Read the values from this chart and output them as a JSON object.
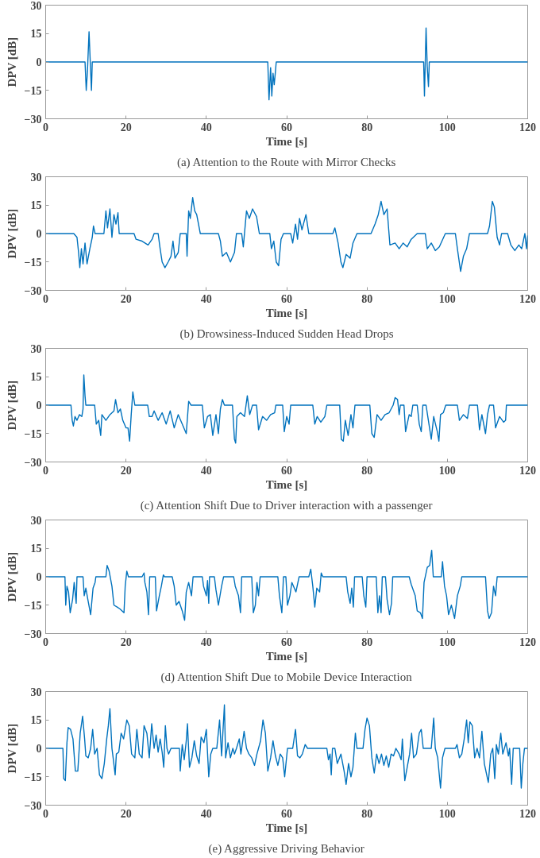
{
  "chart_data": [
    {
      "type": "line",
      "title": "(a) Attention to the Route with Mirror Checks",
      "xlabel": "Time [s]",
      "ylabel": "DPV [dB]",
      "xlim": [
        0,
        120
      ],
      "ylim": [
        -30,
        30
      ],
      "xticks": [
        0,
        20,
        40,
        60,
        80,
        100,
        120
      ],
      "yticks": [
        -30,
        -15,
        0,
        15,
        30
      ],
      "grid": false,
      "color": "#0072bd",
      "x": [
        0,
        9.8,
        10.1,
        10.4,
        10.8,
        11.1,
        11.4,
        11.6,
        55.3,
        55.6,
        56.0,
        56.3,
        56.6,
        56.9,
        57.2,
        57.4,
        94.1,
        94.3,
        94.7,
        95.0,
        95.3,
        95.5,
        120
      ],
      "values": [
        0,
        0,
        -15,
        -5,
        16,
        0,
        -15,
        0,
        0,
        -20,
        -3,
        -18,
        -6,
        -12,
        -5,
        0,
        0,
        -18,
        18,
        -3,
        -13,
        0,
        0
      ]
    },
    {
      "type": "line",
      "title": "(b) Drowsiness-Induced Sudden Head Drops",
      "xlabel": "Time [s]",
      "ylabel": "DPV [dB]",
      "xlim": [
        0,
        120
      ],
      "ylim": [
        -30,
        30
      ],
      "xticks": [
        0,
        20,
        40,
        60,
        80,
        100,
        120
      ],
      "yticks": [
        -30,
        -15,
        0,
        15,
        30
      ],
      "grid": false,
      "color": "#0072bd",
      "x": [
        0,
        7,
        7.8,
        8.2,
        8.5,
        8.9,
        9.3,
        9.8,
        10.3,
        11,
        11.6,
        11.9,
        12.3,
        14.5,
        15,
        15.4,
        16,
        16.5,
        17,
        17.5,
        18,
        18.3,
        22,
        22.5,
        24,
        25.5,
        26.5,
        27,
        28,
        28.5,
        29,
        29.7,
        30.5,
        31.2,
        31.7,
        32.2,
        33,
        33.5,
        35,
        35.2,
        35.6,
        36,
        36.6,
        37.1,
        37.6,
        38.5,
        43,
        43.5,
        44,
        45,
        46,
        47,
        47.5,
        48.8,
        49.2,
        50,
        50.7,
        51.5,
        52.5,
        53.2,
        55.8,
        56.2,
        56.8,
        57.4,
        58,
        58.6,
        59.2,
        61,
        61.5,
        62.2,
        62.7,
        63.2,
        63.8,
        64.8,
        65.5,
        71.5,
        72,
        72.8,
        73.5,
        74,
        74.8,
        75.8,
        76.5,
        77.5,
        81,
        82,
        82.8,
        83.5,
        84.2,
        85,
        85.7,
        87,
        88,
        89,
        90,
        91,
        92.5,
        94.5,
        95,
        96,
        97,
        98,
        99.5,
        102,
        102.5,
        103.3,
        104,
        104.8,
        105.5,
        110,
        110.5,
        111.2,
        111.7,
        112.4,
        113,
        113.5,
        115,
        115.8,
        116.8,
        117.8,
        118.5,
        119.3,
        119.7,
        120
      ],
      "values": [
        0,
        0,
        -2,
        -10,
        -18,
        -8,
        -16,
        -5,
        -16,
        -8,
        -2,
        4,
        0,
        0,
        12,
        3,
        13,
        -2,
        10,
        5,
        11,
        0,
        0,
        -3,
        -4,
        -6,
        -3,
        0,
        0,
        -8,
        -15,
        -18,
        -15,
        -12,
        -4,
        -13,
        -10,
        0,
        0,
        -12,
        12,
        8,
        19,
        12,
        10,
        0,
        0,
        -4,
        -12,
        -10,
        -15,
        -10,
        0,
        0,
        -7,
        12,
        8,
        13,
        9,
        0,
        0,
        -8,
        -4,
        -15,
        -17,
        -3,
        0,
        0,
        -5,
        5,
        -3,
        8,
        2,
        10,
        0,
        0,
        3,
        -5,
        -15,
        -18,
        -11,
        -13,
        -5,
        0,
        0,
        5,
        10,
        17,
        10,
        13,
        -6,
        -5,
        -8,
        -5,
        -7,
        -3,
        0,
        0,
        -8,
        -5,
        -9,
        -7,
        0,
        0,
        -8,
        -20,
        -12,
        -8,
        0,
        0,
        4,
        17,
        14,
        -2,
        -6,
        0,
        0,
        -6,
        -9,
        -6,
        -8,
        0,
        -8,
        -1
      ]
    },
    {
      "type": "line",
      "title": "(c) Attention Shift Due to Driver interaction with a passenger",
      "xlabel": "Time [s]",
      "ylabel": "DPV [dB]",
      "xlim": [
        0,
        120
      ],
      "ylim": [
        -30,
        30
      ],
      "xticks": [
        0,
        20,
        40,
        60,
        80,
        100,
        120
      ],
      "yticks": [
        -30,
        -15,
        0,
        15,
        30
      ],
      "grid": false,
      "color": "#0072bd",
      "x": [
        0,
        6.3,
        6.6,
        6.9,
        7.3,
        7.8,
        8.4,
        9,
        9.3,
        9.5,
        9.8,
        10,
        12.2,
        12.6,
        13.2,
        13.7,
        14,
        15,
        16,
        17,
        17.4,
        18,
        18.6,
        19.2,
        20,
        20.5,
        20.9,
        21.3,
        21.7,
        22.2,
        25.4,
        25.8,
        26.5,
        27,
        28,
        29,
        30,
        31,
        32,
        33,
        34,
        35,
        35.6,
        36.2,
        39,
        39.5,
        40.3,
        41,
        41.6,
        42.4,
        43,
        43.5,
        44,
        44.5,
        46.5,
        47,
        47.3,
        47.6,
        48.5,
        49.5,
        50.2,
        50.8,
        51.5,
        52.5,
        53,
        54,
        55,
        56,
        57,
        57.3,
        59,
        59.4,
        60,
        60.6,
        61,
        66.5,
        67,
        67.6,
        68.5,
        69.5,
        70,
        73.2,
        73.6,
        74.1,
        74.6,
        75.3,
        76,
        76.5,
        77,
        80.7,
        81.2,
        81.8,
        82.5,
        83.5,
        84.5,
        85.5,
        86.5,
        87,
        87.6,
        88,
        88.3,
        89.2,
        89.6,
        90.5,
        91,
        91.4,
        92.5,
        93,
        93.5,
        93.9,
        94.7,
        95.2,
        96,
        96.6,
        97.5,
        97.9,
        98.3,
        99,
        99.6,
        102.5,
        103,
        104,
        105,
        105.5,
        107.5,
        108,
        108.6,
        109.5,
        110,
        110.5,
        111.5,
        112,
        113,
        114,
        114.5,
        114.7,
        120
      ],
      "values": [
        0,
        0,
        -8,
        -11,
        -6,
        -8,
        -5,
        -6,
        -2,
        16,
        5,
        0,
        0,
        -10,
        -8,
        -16,
        -5,
        -8,
        -5,
        -3,
        3,
        -4,
        -2,
        -8,
        -12,
        -12,
        -19,
        -5,
        7,
        0,
        0,
        -6,
        -6,
        -3,
        -8,
        -4,
        -10,
        -3,
        -12,
        -5,
        -10,
        -15,
        2,
        0,
        0,
        -12,
        -6,
        -5,
        -16,
        -5,
        -15,
        -2,
        3,
        0,
        0,
        -18,
        -20,
        -6,
        -4,
        -6,
        5,
        -5,
        0,
        0,
        -13,
        -6,
        -8,
        -5,
        -4,
        0,
        0,
        -14,
        -6,
        -10,
        0,
        0,
        -10,
        -6,
        -9,
        -6,
        0,
        0,
        -18,
        -19,
        -8,
        -16,
        -5,
        -12,
        0,
        0,
        -15,
        -17,
        -5,
        -8,
        -5,
        -4,
        0,
        4,
        3,
        -5,
        0,
        0,
        -14,
        -5,
        -6,
        0,
        0,
        -10,
        -14,
        0,
        0,
        -7,
        -18,
        -6,
        -14,
        -19,
        -5,
        -4,
        0,
        0,
        -8,
        -5,
        -7,
        0,
        0,
        -13,
        -5,
        -15,
        -5,
        0,
        0,
        -12,
        -6,
        -9,
        -8,
        0,
        0
      ]
    },
    {
      "type": "line",
      "title": "(d) Attention Shift Due to Mobile Device Interaction",
      "xlabel": "Time [s]",
      "ylabel": "DPV [dB]",
      "xlim": [
        0,
        120
      ],
      "ylim": [
        -30,
        30
      ],
      "xticks": [
        0,
        20,
        40,
        60,
        80,
        100,
        120
      ],
      "yticks": [
        -30,
        -15,
        0,
        15,
        30
      ],
      "grid": false,
      "color": "#0072bd",
      "x": [
        0,
        4.8,
        5,
        5.3,
        5.7,
        6.1,
        6.7,
        7.1,
        7.6,
        7.8,
        9.3,
        9.6,
        10,
        10.5,
        11.2,
        11.8,
        12.3,
        12.5,
        15,
        15.3,
        15.8,
        16.5,
        17,
        17.8,
        18.5,
        19.5,
        19.8,
        20.2,
        20.6,
        24,
        24.5,
        24.7,
        25.2,
        25.6,
        25.9,
        27.3,
        27.6,
        28.3,
        28.8,
        29.3,
        29.6,
        31.5,
        32,
        32.5,
        33.2,
        34,
        34.6,
        35,
        35.6,
        36.3,
        36.7,
        39,
        39.3,
        40,
        40.3,
        40.6,
        40.8,
        42,
        42.4,
        43,
        43.8,
        44.3,
        46.8,
        47.2,
        48,
        48.5,
        48.8,
        51.3,
        51.7,
        52.2,
        52.6,
        53,
        53.4,
        57.8,
        58.2,
        58.8,
        59.2,
        59.8,
        60.2,
        60.8,
        61.3,
        62.3,
        62.8,
        63.1,
        65.5,
        66,
        66.5,
        67,
        67.5,
        68.2,
        68.6,
        69,
        74.8,
        75.2,
        75.8,
        76.2,
        76.6,
        76.9,
        78.8,
        79.2,
        79.7,
        80,
        82.3,
        82.7,
        83.1,
        83.5,
        83.8,
        84.6,
        85,
        85.6,
        86.1,
        86.4,
        90.5,
        91,
        92,
        92.5,
        93.3,
        93.8,
        94.2,
        95,
        95.6,
        96.1,
        96.5,
        98.5,
        98.8,
        99.3,
        99.8,
        100.3,
        101,
        101.8,
        102.5,
        103.2,
        103.6,
        109.5,
        110,
        110.4,
        111,
        111.5,
        112,
        112.4,
        120
      ],
      "values": [
        0,
        0,
        -15,
        -5,
        -8,
        -19,
        -12,
        -3,
        -14,
        0,
        0,
        -10,
        -6,
        -12,
        -20,
        -6,
        -3,
        0,
        0,
        6,
        3,
        -5,
        -15,
        -16,
        -17,
        -19,
        -5,
        3,
        0,
        0,
        2,
        -3,
        -8,
        -20,
        0,
        0,
        -18,
        -10,
        -5,
        1,
        0,
        0,
        -5,
        -15,
        -13,
        -18,
        -23,
        -8,
        -3,
        -10,
        0,
        0,
        -5,
        -10,
        -2,
        -14,
        0,
        0,
        -7,
        -15,
        -5,
        0,
        0,
        -5,
        -10,
        -19,
        0,
        0,
        -19,
        -15,
        -3,
        -10,
        0,
        0,
        -10,
        -19,
        0,
        0,
        -15,
        -10,
        -3,
        -8,
        -3,
        0,
        0,
        4,
        -5,
        -16,
        -6,
        -8,
        2,
        0,
        0,
        -8,
        -14,
        -6,
        -16,
        0,
        0,
        -10,
        -16,
        0,
        0,
        -19,
        -10,
        -19,
        0,
        0,
        -12,
        -20,
        -14,
        0,
        0,
        -4,
        -10,
        -18,
        -19,
        -22,
        -3,
        5,
        6,
        14,
        0,
        0,
        8,
        -5,
        -10,
        -20,
        -15,
        -22,
        -10,
        -5,
        0,
        0,
        -18,
        -22,
        -19,
        -5,
        -10,
        0,
        0
      ]
    },
    {
      "type": "line",
      "title": "(e) Aggressive Driving Behavior",
      "xlabel": "Time [s]",
      "ylabel": "DPV [dB]",
      "xlim": [
        0,
        120
      ],
      "ylim": [
        -30,
        30
      ],
      "xticks": [
        0,
        20,
        40,
        60,
        80,
        100,
        120
      ],
      "yticks": [
        -30,
        -15,
        0,
        15,
        30
      ],
      "grid": false,
      "color": "#0072bd",
      "x": [
        0,
        4.3,
        4.5,
        4.9,
        5.3,
        5.6,
        6.2,
        6.8,
        7.4,
        8,
        8.6,
        9.2,
        9.7,
        10,
        10.6,
        11.2,
        11.7,
        12.2,
        12.8,
        13.4,
        14,
        14.6,
        15.2,
        15.6,
        16,
        16.5,
        16.8,
        17.3,
        17.6,
        18.2,
        18.8,
        19.4,
        20.2,
        20.8,
        21.4,
        22.2,
        22.7,
        23.3,
        24,
        24.5,
        25.2,
        25.8,
        26.4,
        27,
        27.5,
        28,
        28.5,
        29,
        29.4,
        29.8,
        30.2,
        30.6,
        31.2,
        33.3,
        33.5,
        34,
        34.5,
        35,
        35.3,
        35.8,
        36.4,
        37,
        37.6,
        38.2,
        38.7,
        39.4,
        40,
        40.6,
        41.1,
        41.6,
        42.6,
        43.3,
        43.8,
        44.5,
        44.8,
        45.4,
        46,
        46.6,
        47,
        47.5,
        48.2,
        48.6,
        49.4,
        50,
        50.6,
        51.3,
        52,
        52.6,
        53.5,
        54.1,
        54.7,
        55.3,
        56,
        56.6,
        57.2,
        57.8,
        58.4,
        59,
        59.5,
        60.2,
        61.5,
        62.2,
        62.7,
        63.3,
        63.9,
        64.6,
        65.2,
        70,
        70.4,
        70.8,
        71.1,
        71.4,
        72,
        72.6,
        73.5,
        74.3,
        74.8,
        75.4,
        76,
        76.5,
        77.1,
        77.5,
        79,
        79.5,
        80,
        80.6,
        81.2,
        81.8,
        82.4,
        83,
        83.6,
        84.2,
        84.8,
        85.4,
        86,
        86.6,
        87.2,
        88,
        88.5,
        88.8,
        89.4,
        90,
        90.6,
        91.1,
        91.6,
        92.3,
        93,
        93.5,
        94,
        96,
        96.6,
        97,
        97.6,
        98.3,
        98.8,
        99.4,
        102,
        102.4,
        103,
        103.6,
        104.2,
        104.8,
        105.2,
        105.6,
        106.2,
        106.8,
        107.4,
        108,
        108.6,
        109.2,
        109.7,
        110.2,
        110.8,
        111.3,
        111.8,
        112.2,
        112.7,
        113.3,
        113.8,
        114.6,
        115.2,
        115.5,
        116,
        116.4,
        118,
        118.4,
        118.8,
        119.2,
        120
      ],
      "values": [
        0,
        0,
        -16,
        -17,
        3,
        11,
        10,
        5,
        -12,
        -12,
        8,
        17,
        5,
        -4,
        -5,
        0,
        10,
        -3,
        0,
        -14,
        -16,
        -8,
        5,
        12,
        21,
        0,
        -5,
        -14,
        -3,
        -2,
        8,
        5,
        15,
        12,
        -3,
        -5,
        10,
        -3,
        -5,
        12,
        8,
        -5,
        13,
        0,
        7,
        -2,
        5,
        -2,
        -10,
        12,
        0,
        -3,
        0,
        0,
        -12,
        2,
        -6,
        4,
        13,
        -10,
        -5,
        4,
        -4,
        -8,
        6,
        3,
        10,
        -15,
        -3,
        0,
        0,
        15,
        -4,
        23,
        -5,
        3,
        -5,
        0,
        -3,
        0,
        5,
        -3,
        9,
        0,
        -3,
        -5,
        -9,
        -3,
        4,
        15,
        8,
        -12,
        -5,
        4,
        -4,
        -9,
        -3,
        -5,
        -15,
        0,
        0,
        10,
        -4,
        -5,
        -3,
        2,
        0,
        0,
        -6,
        -3,
        -14,
        0,
        0,
        -8,
        -3,
        -12,
        -19,
        -8,
        -15,
        -10,
        8,
        0,
        0,
        10,
        16,
        12,
        -5,
        -13,
        -3,
        -8,
        -3,
        -9,
        -4,
        -10,
        -3,
        -4,
        0,
        -3,
        -6,
        5,
        -17,
        -10,
        -3,
        8,
        -5,
        -3,
        8,
        10,
        0,
        0,
        16,
        0,
        -5,
        -21,
        -5,
        0,
        0,
        2,
        -5,
        -3,
        5,
        15,
        3,
        14,
        12,
        -5,
        0,
        -5,
        9,
        -8,
        -13,
        -18,
        -3,
        0,
        -16,
        2,
        -3,
        8,
        -3,
        3,
        -4,
        0,
        -19,
        0,
        0,
        -21,
        -8,
        0,
        0
      ]
    }
  ]
}
